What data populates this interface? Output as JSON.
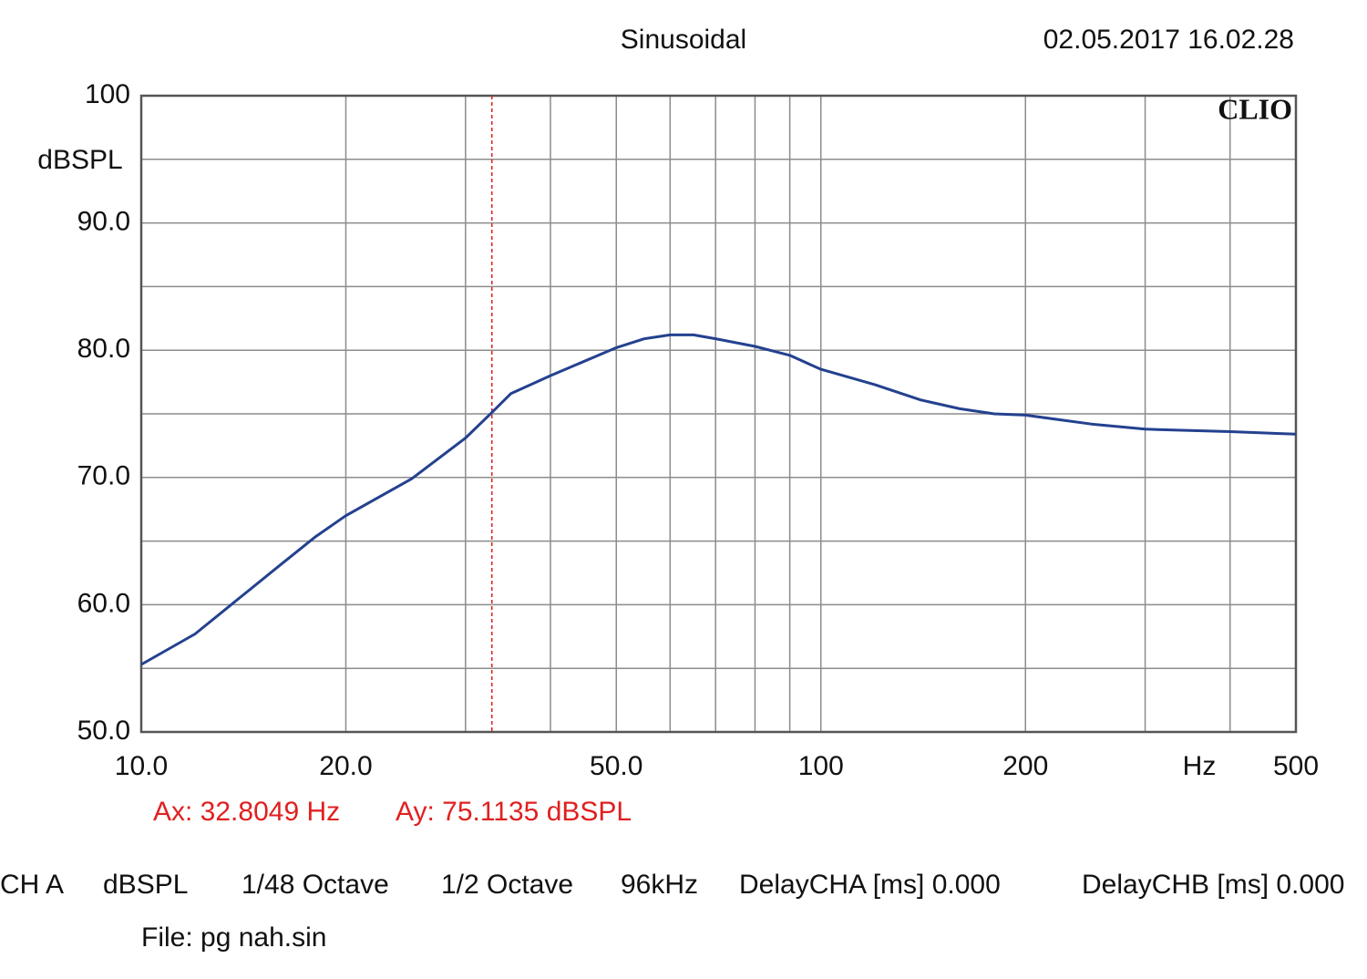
{
  "chart_data": {
    "type": "line",
    "title": "Sinusoidal",
    "timestamp": "02.05.2017 16.02.28",
    "brand": "CLIO",
    "y_label": "dBSPL",
    "x_unit": "Hz",
    "x_scale": "log",
    "x": [
      10,
      12,
      14,
      16,
      18,
      20,
      25,
      30,
      32.8,
      35,
      40,
      50,
      55,
      60,
      65,
      70,
      80,
      90,
      100,
      120,
      140,
      160,
      180,
      200,
      250,
      300,
      400,
      500
    ],
    "series": [
      {
        "name": "CH A",
        "color": "#24418f",
        "values": [
          55.3,
          57.7,
          60.6,
          63.1,
          65.3,
          67.0,
          69.9,
          73.1,
          75.1,
          76.6,
          78.0,
          80.2,
          80.9,
          81.2,
          81.2,
          80.9,
          80.3,
          79.6,
          78.5,
          77.3,
          76.1,
          75.4,
          75.0,
          74.9,
          74.2,
          73.8,
          73.6,
          73.4
        ]
      }
    ],
    "xlim": [
      10,
      500
    ],
    "ylim": [
      50,
      100
    ],
    "xticks": [
      {
        "value": 10,
        "label": "10.0"
      },
      {
        "value": 20,
        "label": "20.0"
      },
      {
        "value": 50,
        "label": "50.0"
      },
      100,
      200,
      500
    ],
    "xgrid": [
      30,
      40,
      60,
      70,
      80,
      90,
      300,
      400
    ],
    "yticks": [
      {
        "value": 50,
        "label": "50.0"
      },
      {
        "value": 60,
        "label": "60.0"
      },
      {
        "value": 70,
        "label": "70.0"
      },
      {
        "value": 80,
        "label": "80.0"
      },
      {
        "value": 90,
        "label": "90.0"
      },
      100
    ],
    "ygrid": [
      55,
      65,
      75,
      85,
      95
    ],
    "grid": true,
    "cursor": {
      "x": 32.8049,
      "y": 75.1135,
      "color": "#e02020",
      "x_label": "Ax: 32.8049 Hz",
      "y_label": "Ay: 75.1135 dBSPL"
    },
    "footer": [
      "CH A",
      "dBSPL",
      "1/48 Octave",
      "1/2 Octave",
      "96kHz",
      "DelayCHA [ms] 0.000",
      "DelayCHB [ms] 0.000"
    ],
    "file": "File: pg nah.sin"
  }
}
